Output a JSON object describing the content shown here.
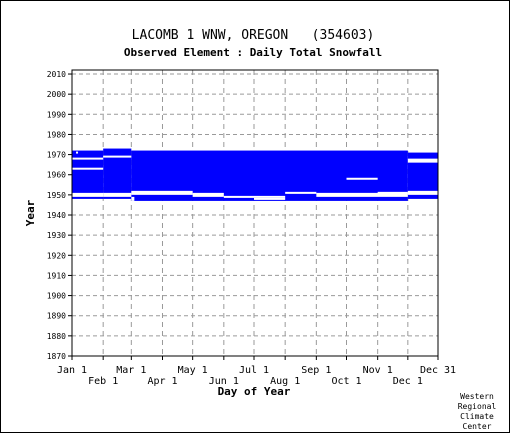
{
  "header": {
    "title": "LACOMB 1 WNW, OREGON   (354603)",
    "subtitle": "Observed Element : Daily Total Snowfall"
  },
  "credit": [
    "Western",
    "Regional",
    "Climate",
    "Center"
  ],
  "chart_data": {
    "type": "heatmap",
    "description_axis_x": "Day of Year",
    "xlabel": "Day of Year",
    "ylabel": "Year",
    "xlim": [
      1,
      365
    ],
    "ylim": [
      1870,
      2012
    ],
    "x_ticks_top_row": [
      {
        "label": "Jan 1",
        "day": 1
      },
      {
        "label": "Mar 1",
        "day": 60
      },
      {
        "label": "May 1",
        "day": 121
      },
      {
        "label": "Jul 1",
        "day": 182
      },
      {
        "label": "Sep 1",
        "day": 244
      },
      {
        "label": "Nov 1",
        "day": 305
      },
      {
        "label": "Dec 31",
        "day": 365
      }
    ],
    "x_ticks_bottom_row": [
      {
        "label": "Feb 1",
        "day": 32
      },
      {
        "label": "Apr 1",
        "day": 91
      },
      {
        "label": "Jun 1",
        "day": 152
      },
      {
        "label": "Aug 1",
        "day": 213
      },
      {
        "label": "Oct 1",
        "day": 274
      },
      {
        "label": "Dec 1",
        "day": 335
      }
    ],
    "y_ticks": [
      1870,
      1880,
      1890,
      1900,
      1910,
      1920,
      1930,
      1940,
      1950,
      1960,
      1970,
      1980,
      1990,
      2000,
      2010
    ],
    "grid": true,
    "data_color": "#0000ff",
    "coverage_blocks": [
      {
        "day_start": 1,
        "day_end": 32,
        "year_start": 1948,
        "year_end": 1972
      },
      {
        "day_start": 32,
        "day_end": 60,
        "year_start": 1948,
        "year_end": 1973
      },
      {
        "day_start": 60,
        "day_end": 335,
        "year_start": 1947,
        "year_end": 1972
      },
      {
        "day_start": 335,
        "day_end": 365,
        "year_start": 1948,
        "year_end": 1971
      }
    ],
    "missing_segments": [
      {
        "day_start": 1,
        "day_end": 32,
        "year": 1950,
        "thickness": 2
      },
      {
        "day_start": 1,
        "day_end": 32,
        "year": 1963,
        "thickness": 1
      },
      {
        "day_start": 1,
        "day_end": 32,
        "year": 1968,
        "thickness": 1
      },
      {
        "day_start": 5,
        "day_end": 7,
        "year": 1971,
        "thickness": 1
      },
      {
        "day_start": 32,
        "day_end": 60,
        "year": 1950,
        "thickness": 2
      },
      {
        "day_start": 32,
        "day_end": 60,
        "year": 1969,
        "thickness": 1
      },
      {
        "day_start": 60,
        "day_end": 63,
        "year": 1948,
        "thickness": 2
      },
      {
        "day_start": 60,
        "day_end": 121,
        "year": 1951,
        "thickness": 2
      },
      {
        "day_start": 121,
        "day_end": 152,
        "year": 1950,
        "thickness": 2
      },
      {
        "day_start": 152,
        "day_end": 213,
        "year": 1949,
        "thickness": 1
      },
      {
        "day_start": 182,
        "day_end": 213,
        "year": 1948,
        "thickness": 1
      },
      {
        "day_start": 213,
        "day_end": 244,
        "year": 1951,
        "thickness": 1
      },
      {
        "day_start": 244,
        "day_end": 335,
        "year": 1950,
        "thickness": 2
      },
      {
        "day_start": 274,
        "day_end": 305,
        "year": 1958,
        "thickness": 1
      },
      {
        "day_start": 305,
        "day_end": 335,
        "year": 1951,
        "thickness": 1
      },
      {
        "day_start": 335,
        "day_end": 365,
        "year": 1951,
        "thickness": 2
      },
      {
        "day_start": 335,
        "day_end": 365,
        "year": 1967,
        "thickness": 2
      }
    ]
  }
}
